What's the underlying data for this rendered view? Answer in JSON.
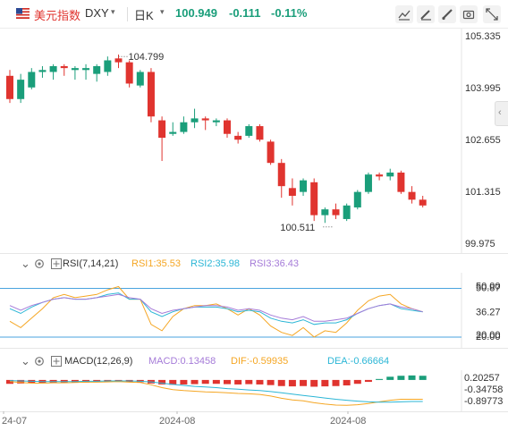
{
  "header": {
    "name": "美元指数",
    "code": "DXY",
    "period": "日K",
    "price": "100.949",
    "change": "-0.111",
    "change_pct": "-0.11%"
  },
  "toolbar": {
    "icons": [
      "chart-line-icon",
      "draw-pen-icon",
      "draw-brush-icon",
      "screenshot-icon",
      "fullscreen-icon"
    ]
  },
  "colors": {
    "up": "#1a9e7a",
    "down": "#e0342f",
    "rsi1": "#f5a623",
    "rsi2": "#2bb6d6",
    "rsi3": "#a57bd8",
    "level": "#4aa3df"
  },
  "main_chart": {
    "price_labels": [
      "105.335",
      "103.995",
      "102.655",
      "101.315",
      "99.975"
    ],
    "annotations": [
      {
        "text": "104.799",
        "kind": "high"
      },
      {
        "text": "100.511",
        "kind": "low"
      }
    ]
  },
  "rsi": {
    "label": "RSI(7,14,21)",
    "rsi1": "RSI1:35.53",
    "rsi2": "RSI2:35.98",
    "rsi3": "RSI3:36.43",
    "axis_labels": [
      "50.00",
      "50.87",
      "36.27",
      "20.00",
      "20.00"
    ]
  },
  "macd": {
    "label": "MACD(12,26,9)",
    "macd": "MACD:0.13458",
    "dif": "DIF:-0.59935",
    "dea": "DEA:-0.66664",
    "axis_labels": [
      "0.20257",
      "-0.34758",
      "-0.89773"
    ]
  },
  "date_axis": [
    "24-07",
    "2024-08",
    "2024-08"
  ],
  "chart_data": [
    {
      "type": "candlestick",
      "title": "",
      "ylim": [
        99.975,
        105.335
      ],
      "y_ticks": [
        105.335,
        103.995,
        102.655,
        101.315,
        99.975
      ],
      "x_ticks": [
        "24-07",
        "2024-08",
        "2024-08"
      ],
      "candles": [
        {
          "o": 104.3,
          "h": 104.45,
          "l": 103.6,
          "c": 103.7
        },
        {
          "o": 103.7,
          "h": 104.35,
          "l": 103.6,
          "c": 104.2
        },
        {
          "o": 104.0,
          "h": 104.5,
          "l": 103.95,
          "c": 104.4
        },
        {
          "o": 104.4,
          "h": 104.55,
          "l": 104.25,
          "c": 104.45
        },
        {
          "o": 104.4,
          "h": 104.6,
          "l": 104.2,
          "c": 104.55
        },
        {
          "o": 104.55,
          "h": 104.6,
          "l": 104.3,
          "c": 104.5
        },
        {
          "o": 104.45,
          "h": 104.55,
          "l": 104.2,
          "c": 104.5
        },
        {
          "o": 104.45,
          "h": 104.6,
          "l": 104.2,
          "c": 104.5
        },
        {
          "o": 104.35,
          "h": 104.6,
          "l": 104.15,
          "c": 104.55
        },
        {
          "o": 104.4,
          "h": 104.8,
          "l": 104.3,
          "c": 104.7
        },
        {
          "o": 104.75,
          "h": 104.85,
          "l": 104.5,
          "c": 104.65
        },
        {
          "o": 104.65,
          "h": 104.7,
          "l": 104.0,
          "c": 104.1
        },
        {
          "o": 104.05,
          "h": 104.45,
          "l": 104.0,
          "c": 104.4
        },
        {
          "o": 104.4,
          "h": 104.5,
          "l": 103.1,
          "c": 103.25
        },
        {
          "o": 103.15,
          "h": 103.25,
          "l": 102.1,
          "c": 102.7
        },
        {
          "o": 102.8,
          "h": 103.1,
          "l": 102.75,
          "c": 102.85
        },
        {
          "o": 102.85,
          "h": 103.25,
          "l": 102.8,
          "c": 103.1
        },
        {
          "o": 103.1,
          "h": 103.45,
          "l": 102.95,
          "c": 103.2
        },
        {
          "o": 103.2,
          "h": 103.25,
          "l": 102.9,
          "c": 103.15
        },
        {
          "o": 103.1,
          "h": 103.2,
          "l": 103.0,
          "c": 103.15
        },
        {
          "o": 103.15,
          "h": 103.2,
          "l": 102.7,
          "c": 102.8
        },
        {
          "o": 102.75,
          "h": 102.85,
          "l": 102.55,
          "c": 102.65
        },
        {
          "o": 102.75,
          "h": 103.05,
          "l": 102.7,
          "c": 103.0
        },
        {
          "o": 103.0,
          "h": 103.05,
          "l": 102.6,
          "c": 102.65
        },
        {
          "o": 102.6,
          "h": 102.65,
          "l": 102.0,
          "c": 102.05
        },
        {
          "o": 102.05,
          "h": 102.15,
          "l": 101.15,
          "c": 101.45
        },
        {
          "o": 101.4,
          "h": 101.65,
          "l": 100.95,
          "c": 101.2
        },
        {
          "o": 101.3,
          "h": 101.65,
          "l": 101.2,
          "c": 101.6
        },
        {
          "o": 101.55,
          "h": 101.65,
          "l": 100.55,
          "c": 100.7
        },
        {
          "o": 100.7,
          "h": 100.9,
          "l": 100.5,
          "c": 100.85
        },
        {
          "o": 100.85,
          "h": 101.0,
          "l": 100.6,
          "c": 100.7
        },
        {
          "o": 100.6,
          "h": 101.0,
          "l": 100.55,
          "c": 100.95
        },
        {
          "o": 100.9,
          "h": 101.35,
          "l": 100.85,
          "c": 101.3
        },
        {
          "o": 101.3,
          "h": 101.8,
          "l": 101.25,
          "c": 101.75
        },
        {
          "o": 101.75,
          "h": 101.8,
          "l": 101.6,
          "c": 101.7
        },
        {
          "o": 101.7,
          "h": 101.9,
          "l": 101.6,
          "c": 101.8
        },
        {
          "o": 101.8,
          "h": 101.85,
          "l": 101.25,
          "c": 101.3
        },
        {
          "o": 101.3,
          "h": 101.45,
          "l": 101.0,
          "c": 101.1
        },
        {
          "o": 101.1,
          "h": 101.2,
          "l": 100.9,
          "c": 100.95
        }
      ],
      "annotations": [
        {
          "text": "104.799",
          "x_index": 10,
          "value": 104.799
        },
        {
          "text": "100.511",
          "x_index": 29,
          "value": 100.511
        }
      ]
    },
    {
      "type": "line",
      "title": "RSI(7,14,21)",
      "ylim": [
        20,
        50.87
      ],
      "levels": [
        50.87,
        20.0
      ],
      "series": [
        {
          "name": "RSI1",
          "values": [
            30,
            26,
            32,
            38,
            45,
            47,
            45,
            46,
            47,
            50,
            52,
            44,
            44,
            28,
            24,
            33,
            38,
            40,
            40,
            41,
            38,
            34,
            38,
            34,
            27,
            23,
            21,
            26,
            20,
            24,
            23,
            29,
            37,
            43,
            46,
            47,
            41,
            38,
            36
          ]
        },
        {
          "name": "RSI2",
          "values": [
            38,
            35,
            39,
            42,
            44,
            45,
            44,
            44,
            45,
            47,
            48,
            44,
            44,
            36,
            33,
            36,
            38,
            39,
            39,
            39,
            38,
            36,
            37,
            36,
            32,
            30,
            29,
            31,
            28,
            29,
            29,
            31,
            35,
            38,
            40,
            41,
            38,
            37,
            36
          ]
        },
        {
          "name": "RSI3",
          "values": [
            40,
            37,
            40,
            42,
            44,
            45,
            44,
            44,
            45,
            46,
            47,
            45,
            44,
            38,
            35,
            37,
            38,
            39,
            40,
            40,
            39,
            37,
            38,
            37,
            34,
            32,
            31,
            33,
            30,
            30,
            31,
            32,
            35,
            38,
            40,
            41,
            39,
            38,
            36
          ]
        }
      ]
    },
    {
      "type": "bar",
      "title": "MACD(12,26,9)",
      "ylim": [
        -0.89773,
        0.20257
      ],
      "series": [
        {
          "name": "MACD",
          "values": [
            -0.12,
            -0.11,
            -0.1,
            -0.1,
            -0.09,
            -0.09,
            -0.08,
            -0.08,
            -0.07,
            -0.07,
            -0.06,
            -0.07,
            -0.07,
            -0.11,
            -0.14,
            -0.15,
            -0.14,
            -0.13,
            -0.12,
            -0.12,
            -0.13,
            -0.14,
            -0.13,
            -0.14,
            -0.16,
            -0.19,
            -0.2,
            -0.19,
            -0.21,
            -0.2,
            -0.19,
            -0.17,
            -0.12,
            -0.06,
            0.03,
            0.1,
            0.13,
            0.14,
            0.13
          ]
        },
        {
          "name": "DIF",
          "values": [
            -0.05,
            -0.08,
            -0.1,
            -0.1,
            -0.09,
            -0.09,
            -0.08,
            -0.07,
            -0.07,
            -0.06,
            -0.05,
            -0.07,
            -0.08,
            -0.15,
            -0.24,
            -0.3,
            -0.33,
            -0.35,
            -0.37,
            -0.38,
            -0.4,
            -0.42,
            -0.43,
            -0.45,
            -0.5,
            -0.57,
            -0.62,
            -0.65,
            -0.71,
            -0.75,
            -0.78,
            -0.79,
            -0.77,
            -0.73,
            -0.68,
            -0.63,
            -0.6,
            -0.6,
            -0.6
          ]
        },
        {
          "name": "DEA",
          "values": [
            -0.02,
            -0.03,
            -0.04,
            -0.05,
            -0.05,
            -0.05,
            -0.05,
            -0.04,
            -0.04,
            -0.03,
            -0.03,
            -0.03,
            -0.04,
            -0.06,
            -0.1,
            -0.14,
            -0.17,
            -0.2,
            -0.22,
            -0.24,
            -0.27,
            -0.29,
            -0.31,
            -0.33,
            -0.36,
            -0.4,
            -0.44,
            -0.48,
            -0.52,
            -0.56,
            -0.6,
            -0.63,
            -0.66,
            -0.68,
            -0.69,
            -0.69,
            -0.68,
            -0.67,
            -0.67
          ]
        }
      ]
    }
  ]
}
